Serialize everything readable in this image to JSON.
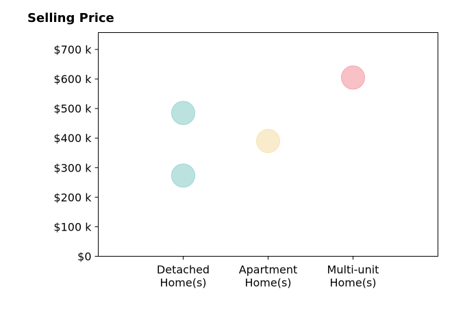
{
  "chart_data": {
    "type": "scatter",
    "title": "Selling Price",
    "xlabel": "",
    "ylabel": "",
    "categories": [
      [
        "Detached",
        "Home(s)"
      ],
      [
        "Apartment",
        "Home(s)"
      ],
      [
        "Multi-unit",
        "Home(s)"
      ]
    ],
    "y_ticks": [
      0,
      100000,
      200000,
      300000,
      400000,
      500000,
      600000,
      700000
    ],
    "y_tick_labels": [
      "$0",
      "$100 k",
      "$200 k",
      "$300 k",
      "$400 k",
      "$500 k",
      "$600 k",
      "$700 k"
    ],
    "ylim": [
      0,
      757000
    ],
    "xlim": [
      -1,
      3
    ],
    "grid": false,
    "points": [
      {
        "category_index": 0,
        "y": 485000,
        "color": "#9fd5d1"
      },
      {
        "category_index": 0,
        "y": 273000,
        "color": "#9fd5d1"
      },
      {
        "category_index": 1,
        "y": 390000,
        "color": "#f7e4b7"
      },
      {
        "category_index": 2,
        "y": 605000,
        "color": "#f4a6ae"
      }
    ]
  }
}
